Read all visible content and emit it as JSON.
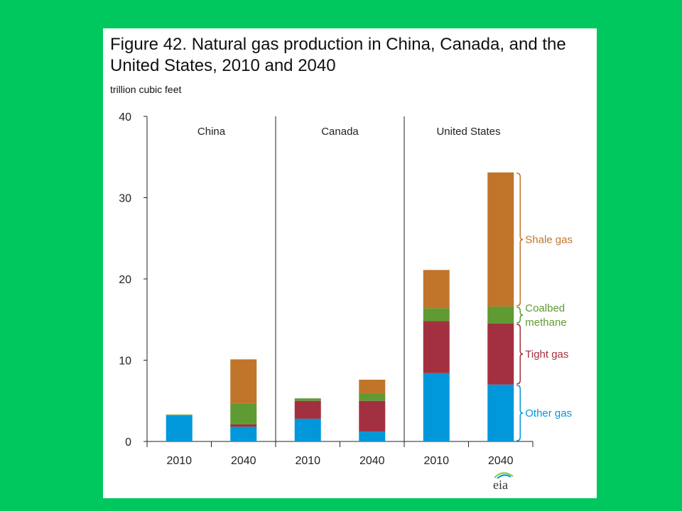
{
  "colors": {
    "background": "#00c85f",
    "panel": "#ffffff",
    "Other gas": "#0098da",
    "Tight gas": "#a33040",
    "Coalbed methane": "#5f9a32",
    "Shale gas": "#c0752b",
    "axis": "#222222"
  },
  "chart_data": {
    "type": "bar",
    "stacked": true,
    "title": "Figure 42. Natural gas production in China, Canada, and the United States, 2010 and 2040",
    "ylabel": "trillion  cubic feet",
    "ylim": [
      0,
      40
    ],
    "yticks": [
      "0",
      "10",
      "20",
      "30",
      "40"
    ],
    "groups": [
      "China",
      "Canada",
      "United States"
    ],
    "categories": [
      "2010",
      "2040",
      "2010",
      "2040",
      "2010",
      "2040"
    ],
    "series": [
      {
        "name": "Other gas",
        "values": [
          3.2,
          1.8,
          2.8,
          1.2,
          8.4,
          7.0
        ]
      },
      {
        "name": "Tight gas",
        "values": [
          0.0,
          0.3,
          2.2,
          3.8,
          6.4,
          7.5
        ]
      },
      {
        "name": "Coalbed methane",
        "values": [
          0.1,
          2.6,
          0.3,
          0.9,
          1.6,
          2.1
        ]
      },
      {
        "name": "Shale gas",
        "values": [
          0.0,
          5.4,
          0.0,
          1.7,
          4.7,
          16.5
        ]
      }
    ],
    "legend": {
      "placement": "right",
      "entries": [
        {
          "series": "Shale gas",
          "lines": [
            "Shale gas"
          ]
        },
        {
          "series": "Coalbed methane",
          "lines": [
            "Coalbed",
            "methane"
          ]
        },
        {
          "series": "Tight gas",
          "lines": [
            "Tight gas"
          ]
        },
        {
          "series": "Other gas",
          "lines": [
            "Other gas"
          ]
        }
      ]
    },
    "source_logo": "eia"
  }
}
